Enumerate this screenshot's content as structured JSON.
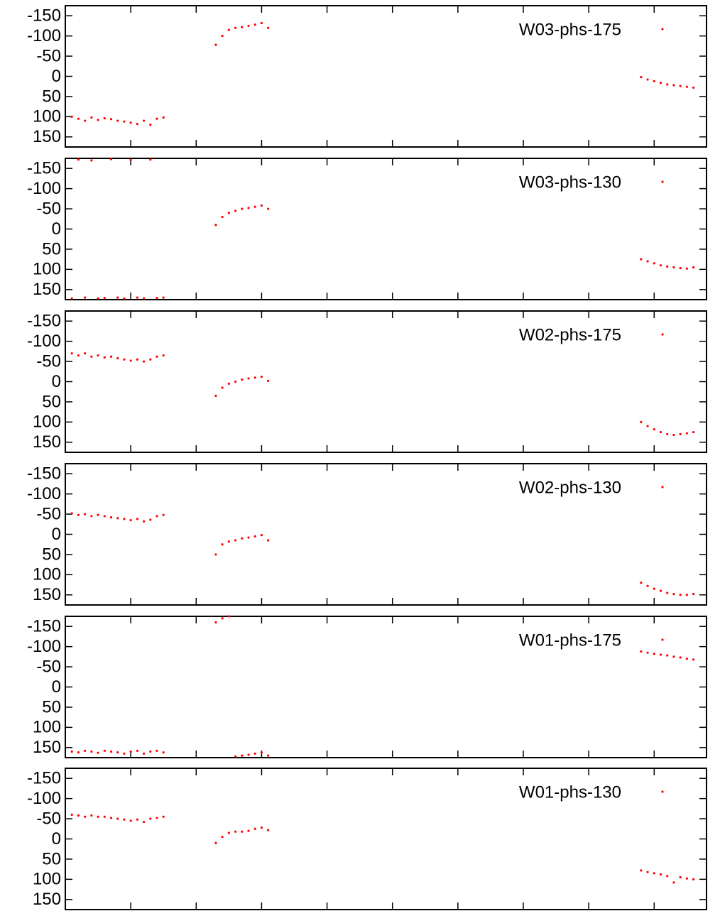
{
  "chart_data": [
    {
      "type": "scatter",
      "xlim": [
        0,
        9.8
      ],
      "xticks": [
        1,
        2,
        3,
        4,
        5,
        6,
        7,
        8,
        9
      ],
      "ylim": [
        175,
        -175
      ],
      "yticks": [
        -150,
        -100,
        -50,
        0,
        50,
        100,
        150
      ],
      "legend": "upper right",
      "x": [
        0.1,
        0.2,
        0.3,
        0.4,
        0.5,
        0.6,
        0.7,
        0.8,
        0.9,
        1.0,
        1.1,
        1.2,
        1.3,
        1.4,
        1.5,
        2.3,
        2.4,
        2.5,
        2.6,
        2.7,
        2.8,
        2.9,
        3.0,
        3.1,
        8.8,
        8.9,
        9.0,
        9.1,
        9.2,
        9.3,
        9.4,
        9.5,
        9.6
      ],
      "series": [
        {
          "name": "W03-phs-175",
          "color": "#ff0000",
          "values": [
            100,
            105,
            110,
            102,
            108,
            104,
            106,
            110,
            112,
            115,
            118,
            110,
            120,
            105,
            102,
            -78,
            -100,
            -115,
            -120,
            -122,
            -125,
            -128,
            -132,
            -120,
            2,
            8,
            12,
            16,
            20,
            22,
            24,
            26,
            28
          ]
        }
      ]
    },
    {
      "type": "scatter",
      "xlim": [
        0,
        9.8
      ],
      "xticks": [
        1,
        2,
        3,
        4,
        5,
        6,
        7,
        8,
        9
      ],
      "ylim": [
        175,
        -175
      ],
      "yticks": [
        -150,
        -100,
        -50,
        0,
        50,
        100,
        150
      ],
      "legend": "upper right",
      "x": [
        0.1,
        0.2,
        0.3,
        0.4,
        0.5,
        0.6,
        0.7,
        0.8,
        0.9,
        1.0,
        1.1,
        1.2,
        1.3,
        1.4,
        1.5,
        2.3,
        2.4,
        2.5,
        2.6,
        2.7,
        2.8,
        2.9,
        3.0,
        3.1,
        8.8,
        8.9,
        9.0,
        9.1,
        9.2,
        9.3,
        9.4,
        9.5,
        9.6
      ],
      "series": [
        {
          "name": "W03-phs-130",
          "color": "#ff0000",
          "values": [
            172,
            -172,
            170,
            -170,
            172,
            171,
            -173,
            170,
            172,
            -171,
            170,
            172,
            -172,
            171,
            170,
            -10,
            -30,
            -40,
            -45,
            -50,
            -52,
            -55,
            -58,
            -50,
            75,
            80,
            85,
            90,
            93,
            95,
            97,
            98,
            95
          ]
        }
      ]
    },
    {
      "type": "scatter",
      "xlim": [
        0,
        9.8
      ],
      "xticks": [
        1,
        2,
        3,
        4,
        5,
        6,
        7,
        8,
        9
      ],
      "ylim": [
        175,
        -175
      ],
      "yticks": [
        -150,
        -100,
        -50,
        0,
        50,
        100,
        150
      ],
      "legend": "upper right",
      "x": [
        0.1,
        0.2,
        0.3,
        0.4,
        0.5,
        0.6,
        0.7,
        0.8,
        0.9,
        1.0,
        1.1,
        1.2,
        1.3,
        1.4,
        1.5,
        2.3,
        2.4,
        2.5,
        2.6,
        2.7,
        2.8,
        2.9,
        3.0,
        3.1,
        8.8,
        8.9,
        9.0,
        9.1,
        9.2,
        9.3,
        9.4,
        9.5,
        9.6
      ],
      "series": [
        {
          "name": "W02-phs-175",
          "color": "#ff0000",
          "values": [
            -70,
            -65,
            -70,
            -62,
            -65,
            -60,
            -62,
            -58,
            -55,
            -52,
            -55,
            -50,
            -55,
            -62,
            -65,
            35,
            15,
            5,
            0,
            -5,
            -8,
            -10,
            -12,
            -2,
            100,
            110,
            118,
            125,
            130,
            132,
            130,
            128,
            125
          ]
        }
      ]
    },
    {
      "type": "scatter",
      "xlim": [
        0,
        9.8
      ],
      "xticks": [
        1,
        2,
        3,
        4,
        5,
        6,
        7,
        8,
        9
      ],
      "ylim": [
        175,
        -175
      ],
      "yticks": [
        -150,
        -100,
        -50,
        0,
        50,
        100,
        150
      ],
      "legend": "upper right",
      "x": [
        0.1,
        0.2,
        0.3,
        0.4,
        0.5,
        0.6,
        0.7,
        0.8,
        0.9,
        1.0,
        1.1,
        1.2,
        1.3,
        1.4,
        1.5,
        2.3,
        2.4,
        2.5,
        2.6,
        2.7,
        2.8,
        2.9,
        3.0,
        3.1,
        8.8,
        8.9,
        9.0,
        9.1,
        9.2,
        9.3,
        9.4,
        9.5,
        9.6
      ],
      "series": [
        {
          "name": "W02-phs-130",
          "color": "#ff0000",
          "values": [
            -52,
            -48,
            -50,
            -45,
            -48,
            -45,
            -42,
            -40,
            -38,
            -35,
            -38,
            -32,
            -36,
            -45,
            -48,
            50,
            25,
            18,
            15,
            10,
            8,
            5,
            2,
            15,
            120,
            128,
            135,
            140,
            145,
            148,
            150,
            150,
            148
          ]
        }
      ]
    },
    {
      "type": "scatter",
      "xlim": [
        0,
        9.8
      ],
      "xticks": [
        1,
        2,
        3,
        4,
        5,
        6,
        7,
        8,
        9
      ],
      "ylim": [
        175,
        -175
      ],
      "yticks": [
        -150,
        -100,
        -50,
        0,
        50,
        100,
        150
      ],
      "legend": "upper right",
      "x": [
        0.1,
        0.2,
        0.3,
        0.4,
        0.5,
        0.6,
        0.7,
        0.8,
        0.9,
        1.0,
        1.1,
        1.2,
        1.3,
        1.4,
        1.5,
        2.3,
        2.4,
        2.5,
        2.6,
        2.7,
        2.8,
        2.9,
        3.0,
        3.1,
        8.8,
        8.9,
        9.0,
        9.1,
        9.2,
        9.3,
        9.4,
        9.5,
        9.6
      ],
      "series": [
        {
          "name": "W01-phs-175",
          "color": "#ff0000",
          "values": [
            160,
            162,
            158,
            160,
            163,
            158,
            160,
            162,
            165,
            160,
            158,
            165,
            160,
            158,
            162,
            -160,
            -170,
            -175,
            172,
            170,
            168,
            165,
            162,
            170,
            -88,
            -85,
            -82,
            -80,
            -78,
            -75,
            -73,
            -70,
            -68
          ]
        }
      ]
    },
    {
      "type": "scatter",
      "xlim": [
        0,
        9.8
      ],
      "xticks": [
        1,
        2,
        3,
        4,
        5,
        6,
        7,
        8,
        9
      ],
      "ylim": [
        175,
        -175
      ],
      "yticks": [
        -150,
        -100,
        -50,
        0,
        50,
        100,
        150
      ],
      "legend": "upper right",
      "x": [
        0.1,
        0.2,
        0.3,
        0.4,
        0.5,
        0.6,
        0.7,
        0.8,
        0.9,
        1.0,
        1.1,
        1.2,
        1.3,
        1.4,
        1.5,
        2.3,
        2.4,
        2.5,
        2.6,
        2.7,
        2.8,
        2.9,
        3.0,
        3.1,
        8.8,
        8.9,
        9.0,
        9.1,
        9.2,
        9.3,
        9.4,
        9.5,
        9.6
      ],
      "series": [
        {
          "name": "W01-phs-130",
          "color": "#ff0000",
          "values": [
            -60,
            -58,
            -55,
            -58,
            -55,
            -55,
            -52,
            -50,
            -48,
            -45,
            -48,
            -42,
            -50,
            -52,
            -55,
            10,
            -5,
            -15,
            -18,
            -18,
            -20,
            -25,
            -28,
            -22,
            78,
            82,
            85,
            88,
            92,
            108,
            95,
            98,
            100
          ]
        }
      ]
    }
  ]
}
